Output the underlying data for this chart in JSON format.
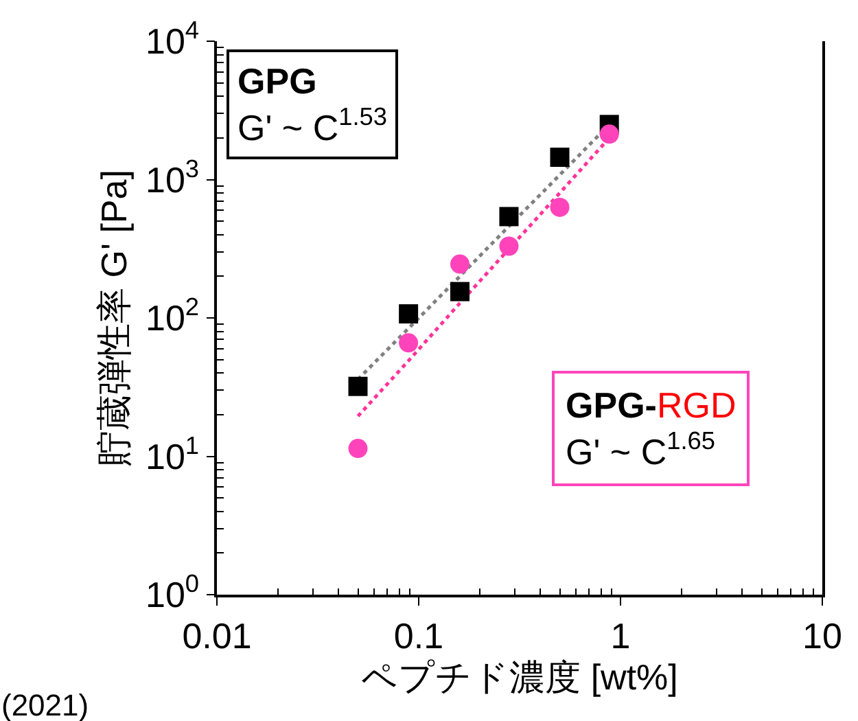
{
  "chart_data": {
    "type": "scatter",
    "xlabel": "ペプチド濃度 [wt%]",
    "ylabel": "貯蔵弾性率 G' [Pa]",
    "log": "xy",
    "xlim": [
      0.01,
      10
    ],
    "xticks": [
      0.01,
      0.1,
      1,
      10
    ],
    "ylim": [
      1,
      10000
    ],
    "yticks": [
      {
        "value": 1,
        "label": "10$^{0}$"
      },
      {
        "value": 10,
        "label": "10$^{1}$"
      },
      {
        "value": 100,
        "label": "10$^{2}$"
      },
      {
        "value": 1000,
        "label": "10$^{3}$"
      },
      {
        "value": 10000,
        "label": "10$^{4}$"
      }
    ],
    "x": [
      0.05,
      0.089,
      0.16,
      0.28,
      0.5,
      0.88
    ],
    "series": [
      {
        "type": "line",
        "color": "#808080",
        "values": [
          36,
          84,
          200,
          460,
          1080,
          2500
        ],
        "marker": "none",
        "line_style": "dotted"
      },
      {
        "type": "line",
        "color": "#ff3399",
        "values": [
          19.5,
          49,
          128,
          315,
          800,
          2000
        ],
        "marker": "none",
        "line_style": "dotted"
      },
      {
        "color": "#000000",
        "values": [
          32,
          107,
          155,
          540,
          1450,
          2500
        ],
        "marker": "square"
      },
      {
        "color": "#ff44bb",
        "values": [
          11.4,
          66,
          245,
          330,
          630,
          2130
        ],
        "marker": "circle"
      }
    ],
    "annotations": [
      "GPG",
      "G' ~ C$^{1.53}$",
      "GPG-RGD",
      "G' ~ C$^{1.65}$",
      "(2021)"
    ]
  }
}
